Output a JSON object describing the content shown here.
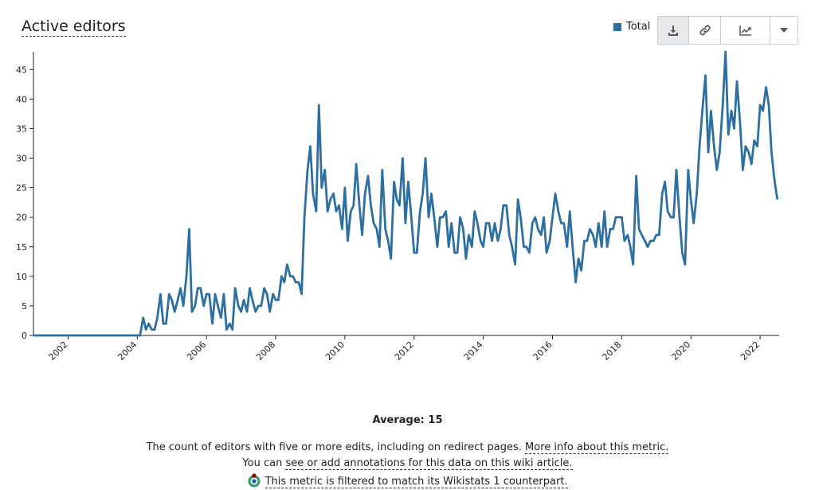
{
  "title": "Active editors",
  "legend": {
    "label": "Total",
    "color": "#2c6fa0"
  },
  "toolbar": {
    "buttons": [
      {
        "icon": "download-icon"
      },
      {
        "icon": "link-icon"
      },
      {
        "icon": "line-chart-icon"
      },
      {
        "icon": "chevron-down-icon"
      }
    ]
  },
  "summary": {
    "average": "Average: 15"
  },
  "footer": {
    "description": "The count of editors with five or more edits, including on redirect pages.",
    "more_info_link": "More info about this metric.",
    "annotations_prefix": "You can",
    "annotations_link": "see or add annotations for this data on this wiki article.",
    "filter_note": "This metric is filtered to match its Wikistats 1 counterpart."
  },
  "chart_data": {
    "type": "line",
    "xlabel": "",
    "ylabel": "",
    "ylim": [
      0,
      48
    ],
    "xlim": [
      2001.0,
      2022.55
    ],
    "x_ticks": [
      "2002",
      "2004",
      "2006",
      "2008",
      "2010",
      "2012",
      "2014",
      "2016",
      "2018",
      "2020",
      "2022"
    ],
    "y_ticks": [
      "0",
      "5",
      "10",
      "15",
      "20",
      "25",
      "30",
      "35",
      "40",
      "45"
    ],
    "grid": false,
    "legend_position": "top-right",
    "series": [
      {
        "name": "Total",
        "color": "#2c6fa0",
        "points": [
          [
            2001.0,
            0
          ],
          [
            2002.0,
            0
          ],
          [
            2003.0,
            0
          ],
          [
            2004.0,
            0
          ],
          [
            2004.08,
            0
          ],
          [
            2004.17,
            3
          ],
          [
            2004.25,
            1
          ],
          [
            2004.33,
            2
          ],
          [
            2004.42,
            1
          ],
          [
            2004.5,
            1
          ],
          [
            2004.58,
            3
          ],
          [
            2004.67,
            7
          ],
          [
            2004.75,
            2
          ],
          [
            2004.83,
            2
          ],
          [
            2004.92,
            7
          ],
          [
            2005.0,
            6
          ],
          [
            2005.08,
            4
          ],
          [
            2005.17,
            6
          ],
          [
            2005.25,
            8
          ],
          [
            2005.33,
            5
          ],
          [
            2005.42,
            10
          ],
          [
            2005.5,
            18
          ],
          [
            2005.58,
            4
          ],
          [
            2005.67,
            5
          ],
          [
            2005.75,
            8
          ],
          [
            2005.83,
            8
          ],
          [
            2005.92,
            5
          ],
          [
            2006.0,
            7
          ],
          [
            2006.08,
            7
          ],
          [
            2006.17,
            2
          ],
          [
            2006.25,
            7
          ],
          [
            2006.33,
            5
          ],
          [
            2006.42,
            3
          ],
          [
            2006.5,
            7
          ],
          [
            2006.58,
            1
          ],
          [
            2006.67,
            2
          ],
          [
            2006.75,
            1
          ],
          [
            2006.83,
            8
          ],
          [
            2006.92,
            5
          ],
          [
            2007.0,
            4
          ],
          [
            2007.08,
            6
          ],
          [
            2007.17,
            4
          ],
          [
            2007.25,
            8
          ],
          [
            2007.33,
            6
          ],
          [
            2007.42,
            4
          ],
          [
            2007.5,
            5
          ],
          [
            2007.58,
            5
          ],
          [
            2007.67,
            8
          ],
          [
            2007.75,
            7
          ],
          [
            2007.83,
            4
          ],
          [
            2007.92,
            7
          ],
          [
            2008.0,
            6
          ],
          [
            2008.08,
            6
          ],
          [
            2008.17,
            10
          ],
          [
            2008.25,
            9
          ],
          [
            2008.33,
            12
          ],
          [
            2008.42,
            10
          ],
          [
            2008.5,
            10
          ],
          [
            2008.58,
            9
          ],
          [
            2008.67,
            9
          ],
          [
            2008.75,
            7
          ],
          [
            2008.83,
            20
          ],
          [
            2008.92,
            28
          ],
          [
            2009.0,
            32
          ],
          [
            2009.08,
            24
          ],
          [
            2009.17,
            21
          ],
          [
            2009.25,
            39
          ],
          [
            2009.33,
            25
          ],
          [
            2009.42,
            28
          ],
          [
            2009.5,
            21
          ],
          [
            2009.58,
            23
          ],
          [
            2009.67,
            24
          ],
          [
            2009.75,
            21
          ],
          [
            2009.83,
            22
          ],
          [
            2009.92,
            18
          ],
          [
            2010.0,
            25
          ],
          [
            2010.08,
            16
          ],
          [
            2010.17,
            21
          ],
          [
            2010.25,
            22
          ],
          [
            2010.33,
            29
          ],
          [
            2010.42,
            22
          ],
          [
            2010.5,
            17
          ],
          [
            2010.58,
            24
          ],
          [
            2010.67,
            27
          ],
          [
            2010.75,
            22
          ],
          [
            2010.83,
            19
          ],
          [
            2010.92,
            18
          ],
          [
            2011.0,
            15
          ],
          [
            2011.08,
            28
          ],
          [
            2011.17,
            18
          ],
          [
            2011.25,
            16
          ],
          [
            2011.33,
            13
          ],
          [
            2011.42,
            26
          ],
          [
            2011.5,
            23
          ],
          [
            2011.58,
            22
          ],
          [
            2011.67,
            30
          ],
          [
            2011.75,
            19
          ],
          [
            2011.83,
            26
          ],
          [
            2011.92,
            20
          ],
          [
            2012.0,
            14
          ],
          [
            2012.08,
            14
          ],
          [
            2012.17,
            21
          ],
          [
            2012.25,
            24
          ],
          [
            2012.33,
            30
          ],
          [
            2012.42,
            20
          ],
          [
            2012.5,
            24
          ],
          [
            2012.58,
            20
          ],
          [
            2012.67,
            15
          ],
          [
            2012.75,
            20
          ],
          [
            2012.83,
            20
          ],
          [
            2012.92,
            21
          ],
          [
            2013.0,
            15
          ],
          [
            2013.08,
            19
          ],
          [
            2013.17,
            14
          ],
          [
            2013.25,
            14
          ],
          [
            2013.33,
            20
          ],
          [
            2013.42,
            18
          ],
          [
            2013.5,
            13
          ],
          [
            2013.58,
            17
          ],
          [
            2013.67,
            15
          ],
          [
            2013.75,
            21
          ],
          [
            2013.83,
            19
          ],
          [
            2013.92,
            16
          ],
          [
            2014.0,
            15
          ],
          [
            2014.08,
            19
          ],
          [
            2014.17,
            19
          ],
          [
            2014.25,
            16
          ],
          [
            2014.33,
            19
          ],
          [
            2014.42,
            16
          ],
          [
            2014.5,
            18
          ],
          [
            2014.58,
            22
          ],
          [
            2014.67,
            22
          ],
          [
            2014.75,
            17
          ],
          [
            2014.83,
            15
          ],
          [
            2014.92,
            12
          ],
          [
            2015.0,
            23
          ],
          [
            2015.08,
            20
          ],
          [
            2015.17,
            15
          ],
          [
            2015.25,
            15
          ],
          [
            2015.33,
            14
          ],
          [
            2015.42,
            19
          ],
          [
            2015.5,
            20
          ],
          [
            2015.58,
            18
          ],
          [
            2015.67,
            17
          ],
          [
            2015.75,
            20
          ],
          [
            2015.83,
            14
          ],
          [
            2015.92,
            16
          ],
          [
            2016.0,
            20
          ],
          [
            2016.08,
            24
          ],
          [
            2016.17,
            21
          ],
          [
            2016.25,
            19
          ],
          [
            2016.33,
            19
          ],
          [
            2016.42,
            15
          ],
          [
            2016.5,
            21
          ],
          [
            2016.58,
            15
          ],
          [
            2016.67,
            9
          ],
          [
            2016.75,
            13
          ],
          [
            2016.83,
            11
          ],
          [
            2016.92,
            16
          ],
          [
            2017.0,
            16
          ],
          [
            2017.08,
            18
          ],
          [
            2017.17,
            17
          ],
          [
            2017.25,
            15
          ],
          [
            2017.33,
            19
          ],
          [
            2017.42,
            15
          ],
          [
            2017.5,
            21
          ],
          [
            2017.58,
            15
          ],
          [
            2017.67,
            18
          ],
          [
            2017.75,
            18
          ],
          [
            2017.83,
            20
          ],
          [
            2017.92,
            20
          ],
          [
            2018.0,
            20
          ],
          [
            2018.08,
            16
          ],
          [
            2018.17,
            17
          ],
          [
            2018.25,
            15
          ],
          [
            2018.33,
            12
          ],
          [
            2018.42,
            27
          ],
          [
            2018.5,
            18
          ],
          [
            2018.58,
            17
          ],
          [
            2018.67,
            16
          ],
          [
            2018.75,
            15
          ],
          [
            2018.83,
            16
          ],
          [
            2018.92,
            16
          ],
          [
            2019.0,
            17
          ],
          [
            2019.08,
            17
          ],
          [
            2019.17,
            24
          ],
          [
            2019.25,
            26
          ],
          [
            2019.33,
            21
          ],
          [
            2019.42,
            20
          ],
          [
            2019.5,
            20
          ],
          [
            2019.58,
            28
          ],
          [
            2019.67,
            20
          ],
          [
            2019.75,
            14
          ],
          [
            2019.83,
            12
          ],
          [
            2019.92,
            28
          ],
          [
            2020.0,
            23
          ],
          [
            2020.08,
            19
          ],
          [
            2020.17,
            24
          ],
          [
            2020.25,
            32
          ],
          [
            2020.33,
            38
          ],
          [
            2020.42,
            44
          ],
          [
            2020.5,
            31
          ],
          [
            2020.58,
            38
          ],
          [
            2020.67,
            32
          ],
          [
            2020.75,
            28
          ],
          [
            2020.83,
            31
          ],
          [
            2020.92,
            39
          ],
          [
            2021.0,
            48
          ],
          [
            2021.08,
            34
          ],
          [
            2021.17,
            38
          ],
          [
            2021.25,
            35
          ],
          [
            2021.33,
            43
          ],
          [
            2021.42,
            36
          ],
          [
            2021.5,
            28
          ],
          [
            2021.58,
            32
          ],
          [
            2021.67,
            31
          ],
          [
            2021.75,
            29
          ],
          [
            2021.83,
            33
          ],
          [
            2021.92,
            32
          ],
          [
            2022.0,
            39
          ],
          [
            2022.08,
            38
          ],
          [
            2022.17,
            42
          ],
          [
            2022.25,
            39
          ],
          [
            2022.33,
            31
          ],
          [
            2022.42,
            26
          ],
          [
            2022.5,
            23
          ]
        ]
      }
    ]
  }
}
